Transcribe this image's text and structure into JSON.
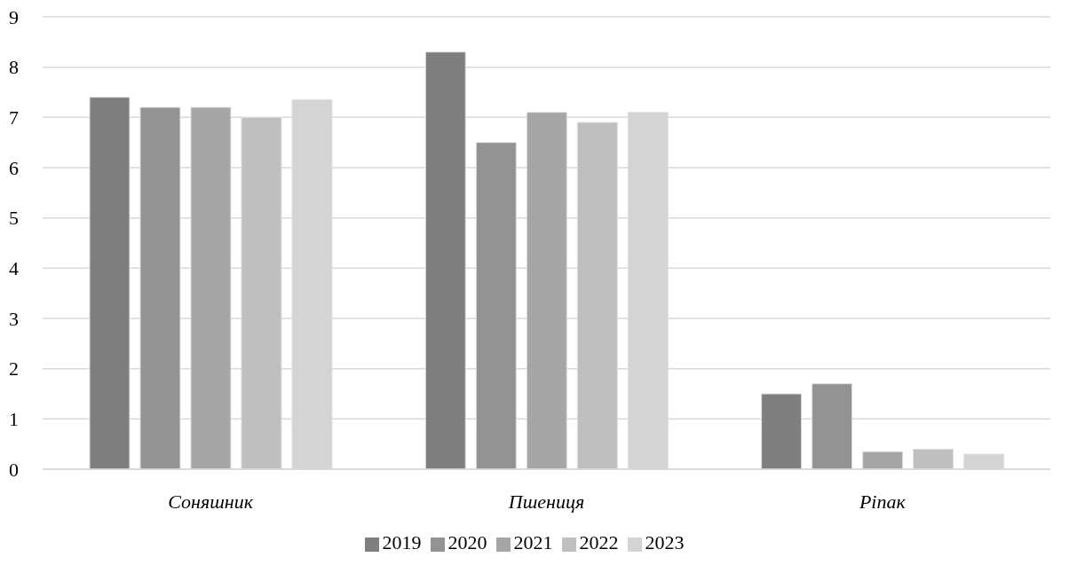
{
  "chart_data": {
    "type": "bar",
    "categories": [
      "Соняшник",
      "Пшениця",
      "Ріпак"
    ],
    "series": [
      {
        "name": "2019",
        "color": "#7f7f7f",
        "values": [
          7.4,
          8.3,
          1.5
        ]
      },
      {
        "name": "2020",
        "color": "#939393",
        "values": [
          7.2,
          6.5,
          1.7
        ]
      },
      {
        "name": "2021",
        "color": "#a6a6a6",
        "values": [
          7.2,
          7.1,
          0.35
        ]
      },
      {
        "name": "2022",
        "color": "#bfbfbf",
        "values": [
          7.0,
          6.9,
          0.4
        ]
      },
      {
        "name": "2023",
        "color": "#d4d4d4",
        "values": [
          7.35,
          7.1,
          0.3
        ]
      }
    ],
    "ylim": [
      0,
      9
    ],
    "yticks": [
      0,
      1,
      2,
      3,
      4,
      5,
      6,
      7,
      8,
      9
    ],
    "grid": "y",
    "legend": "bottom"
  }
}
